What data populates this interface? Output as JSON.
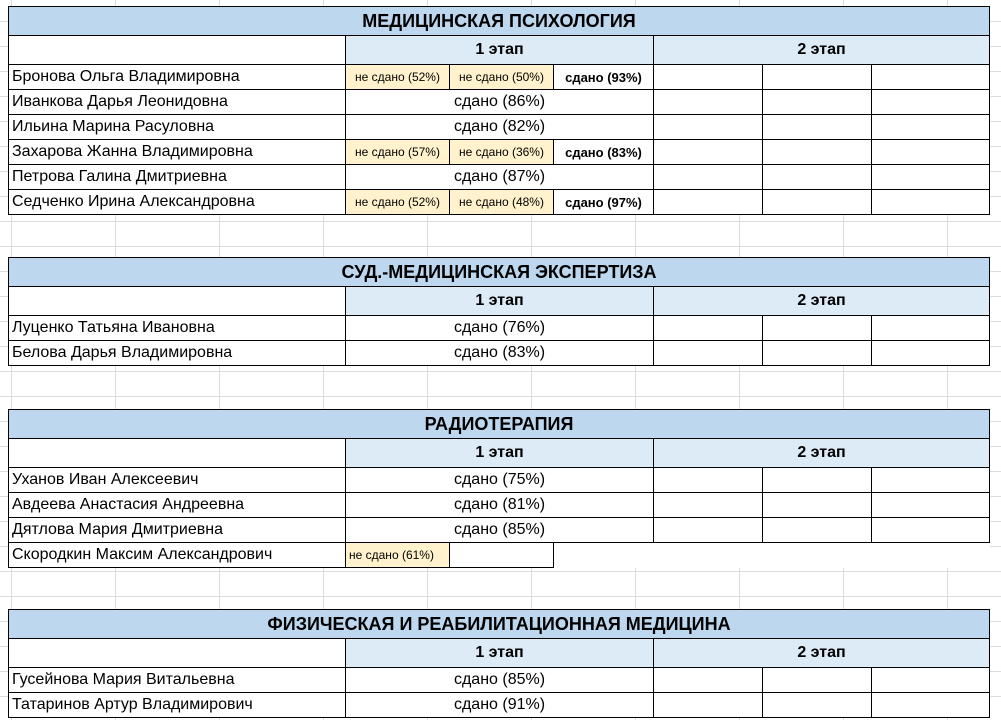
{
  "sections": [
    {
      "title": "МЕДИЦИНСКАЯ ПСИХОЛОГИЯ",
      "stage1": "1 этап",
      "stage2": "2 этап",
      "rows": [
        {
          "name": "Бронова Ольга Владимировна",
          "a": "не сдано (52%)",
          "b": "не сдано (50%)",
          "c": "сдано (93%)"
        },
        {
          "name": "Иванкова Дарья Леонидовна",
          "result": "сдано (86%)"
        },
        {
          "name": "Ильина Марина Расуловна",
          "result": "сдано (82%)"
        },
        {
          "name": "Захарова Жанна Владимировна",
          "a": "не сдано (57%)",
          "b": "не сдано (36%)",
          "c": "сдано (83%)"
        },
        {
          "name": "Петрова Галина Дмитриевна",
          "result": "сдано (87%)"
        },
        {
          "name": "Седченко Ирина Александровна",
          "a": "не сдано (52%)",
          "b": "не сдано (48%)",
          "c": "сдано (97%)"
        }
      ]
    },
    {
      "title": "СУД.-МЕДИЦИНСКАЯ ЭКСПЕРТИЗА",
      "stage1": "1 этап",
      "stage2": "2 этап",
      "rows": [
        {
          "name": "Луценко Татьяна Ивановна",
          "result": "сдано (76%)"
        },
        {
          "name": "Белова Дарья Владимировна",
          "result": "сдано (83%)"
        }
      ]
    },
    {
      "title": "РАДИОТЕРАПИЯ",
      "stage1": "1 этап",
      "stage2": "2 этап",
      "rows": [
        {
          "name": "Уханов Иван Алексеевич",
          "result": "сдано (75%)"
        },
        {
          "name": "Авдеева Анастасия Андреевна",
          "result": "сдано (81%)"
        },
        {
          "name": "Дятлова Мария Дмитриевна",
          "result": "сдано (85%)"
        },
        {
          "name": "Скородкин Максим Александрович",
          "a": "не сдано (61%)"
        }
      ]
    },
    {
      "title": "ФИЗИЧЕСКАЯ И РЕАБИЛИТАЦИОННАЯ МЕДИЦИНА",
      "stage1": "1 этап",
      "stage2": "2 этап",
      "rows": [
        {
          "name": "Гусейнова Мария Витальевна",
          "result": "сдано (85%)"
        },
        {
          "name": "Татаринов Артур Владимирович",
          "result": "сдано (91%)"
        }
      ]
    }
  ],
  "colors": {
    "title_bg": "#bdd7ee",
    "stage_bg": "#ddebf7",
    "fail_bg": "#fff2cc"
  }
}
